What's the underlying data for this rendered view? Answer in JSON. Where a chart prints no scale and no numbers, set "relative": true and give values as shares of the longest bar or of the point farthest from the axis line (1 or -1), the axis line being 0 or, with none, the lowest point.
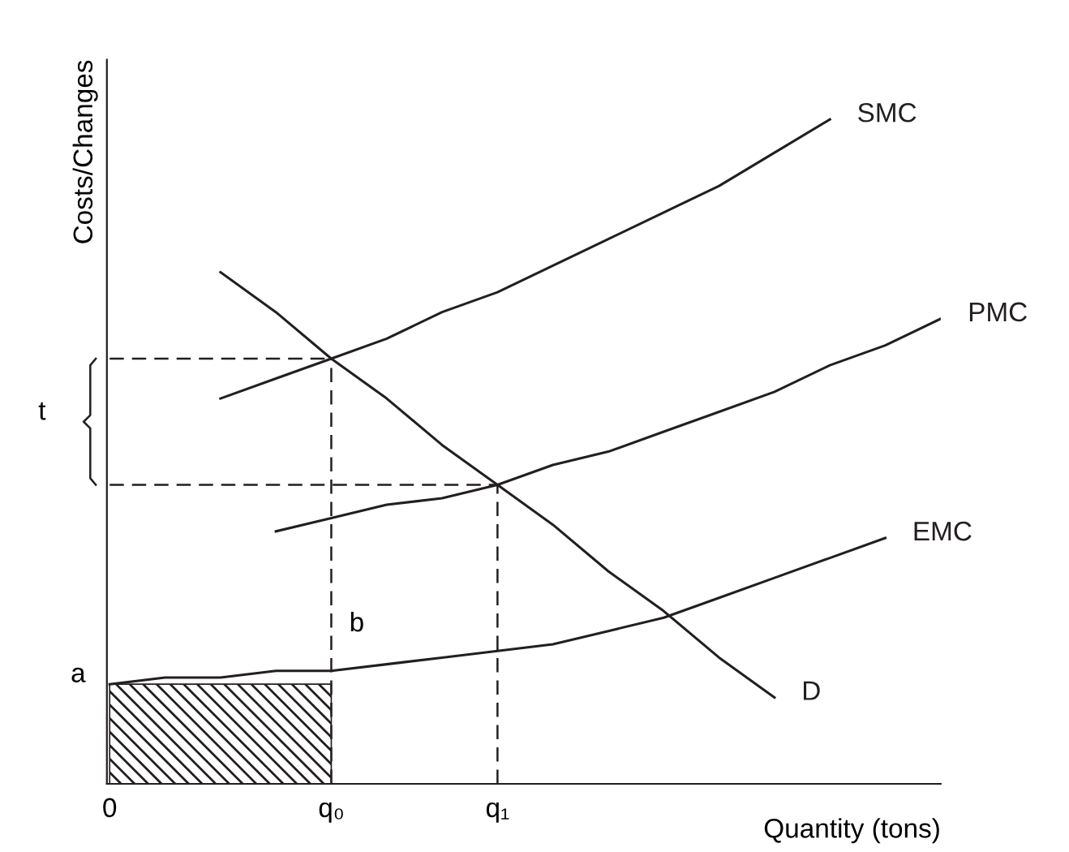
{
  "chart_data": {
    "type": "line",
    "relative": true,
    "xlabel": "Quantity (tons)",
    "ylabel": "Costs/Changes",
    "legend": false,
    "marker": "none",
    "categories": [
      "0",
      null,
      null,
      null,
      "q₀",
      null,
      null,
      "q₁",
      null,
      null,
      null,
      null,
      null,
      null,
      null,
      null
    ],
    "series": [
      {
        "name": "SMC",
        "color": "#231f20",
        "values": [
          null,
          null,
          0.58,
          0.61,
          0.64,
          0.67,
          0.71,
          0.74,
          0.78,
          0.82,
          0.86,
          0.9,
          0.95,
          1.0,
          null,
          null
        ]
      },
      {
        "name": "PMC",
        "color": "#231f20",
        "values": [
          null,
          null,
          null,
          0.38,
          0.4,
          0.42,
          0.43,
          0.45,
          0.48,
          0.5,
          0.53,
          0.56,
          0.59,
          0.63,
          0.66,
          0.7
        ]
      },
      {
        "name": "EMC",
        "color": "#231f20",
        "values": [
          0.15,
          0.16,
          0.16,
          0.17,
          0.17,
          0.18,
          0.19,
          0.2,
          0.21,
          0.23,
          0.25,
          0.28,
          0.31,
          0.34,
          0.37,
          null
        ]
      },
      {
        "name": "D",
        "color": "#231f20",
        "values": [
          null,
          null,
          0.77,
          0.71,
          0.64,
          0.58,
          0.51,
          0.45,
          0.39,
          0.32,
          0.26,
          0.19,
          0.13,
          null,
          null,
          null
        ]
      },
      {
        "color": "#231f20",
        "line_style": "dashed",
        "values": [
          0.64,
          0.64,
          0.64,
          0.64,
          0.64,
          null,
          null,
          null,
          null,
          null,
          null,
          null,
          null,
          null,
          null,
          null
        ]
      },
      {
        "color": "#231f20",
        "line_style": "dashed",
        "values": [
          0.45,
          0.45,
          0.45,
          0.45,
          0.45,
          0.45,
          0.45,
          0.45,
          null,
          null,
          null,
          null,
          null,
          null,
          null,
          null
        ]
      },
      {
        "type": "area",
        "color": "#231f20",
        "values": [
          0.15,
          0.15,
          0.15,
          0.15,
          0.15,
          null,
          null,
          null,
          null,
          null,
          null,
          null,
          null,
          null,
          null,
          null
        ]
      }
    ],
    "ref_lines": [
      {
        "axis": "x",
        "value": "q₀",
        "line_style": "dashed",
        "color": "#231f20"
      },
      {
        "axis": "x",
        "value": "q₁",
        "line_style": "dashed",
        "color": "#231f20"
      }
    ],
    "annotations": [
      "a",
      "t",
      "b"
    ]
  }
}
